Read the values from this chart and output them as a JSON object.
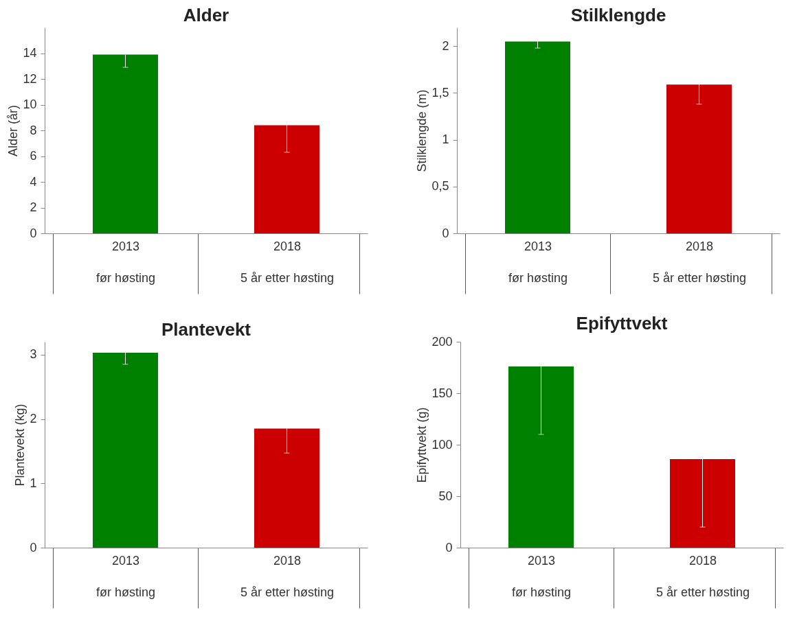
{
  "chart_data": [
    {
      "type": "bar",
      "title": "Alder",
      "ylabel": "Alder (år)",
      "categories": [
        "2013\nfør høsting",
        "2018\n5 år etter høsting"
      ],
      "values": [
        13.9,
        8.4
      ],
      "colors": [
        "#008000",
        "#cc0000"
      ],
      "errors": [
        [
          12.9,
          13.9
        ],
        [
          6.3,
          8.4
        ]
      ],
      "ylim": [
        0,
        16
      ],
      "yticks": [
        0,
        2,
        4,
        6,
        8,
        10,
        12,
        14
      ],
      "grid": false
    },
    {
      "type": "bar",
      "title": "Stilklengde",
      "ylabel": "Stilklengde  (m)",
      "categories": [
        "2013\nfør høsting",
        "2018\n5 år etter høsting"
      ],
      "values": [
        2.05,
        1.59
      ],
      "colors": [
        "#008000",
        "#cc0000"
      ],
      "errors": [
        [
          1.98,
          2.05
        ],
        [
          1.38,
          1.59
        ]
      ],
      "ylim": [
        0,
        2.2
      ],
      "yticks": [
        0,
        {
          "value": 0.5,
          "label": "0,5"
        },
        1,
        {
          "value": 1.5,
          "label": "1,5"
        },
        2
      ],
      "grid": false
    },
    {
      "type": "bar",
      "title": "Plantevekt",
      "ylabel": "Plantevekt  (kg)",
      "categories": [
        "2013\nfør høsting",
        "2018\n5 år etter høsting"
      ],
      "values": [
        3.03,
        1.85
      ],
      "colors": [
        "#008000",
        "#cc0000"
      ],
      "errors": [
        [
          2.85,
          3.03
        ],
        [
          1.47,
          1.85
        ]
      ],
      "ylim": [
        0,
        3.2
      ],
      "yticks": [
        0,
        1,
        2,
        3
      ],
      "grid": false
    },
    {
      "type": "bar",
      "title": "Epifyttvekt",
      "ylabel": "Epifyttvekt  (g)",
      "categories": [
        "2013\nfør høsting",
        "2018\n5 år etter høsting"
      ],
      "values": [
        176,
        86
      ],
      "colors": [
        "#008000",
        "#cc0000"
      ],
      "errors": [
        [
          110,
          176
        ],
        [
          20,
          86
        ]
      ],
      "ylim": [
        0,
        200
      ],
      "yticks": [
        0,
        50,
        100,
        150,
        200
      ],
      "grid": false
    }
  ]
}
